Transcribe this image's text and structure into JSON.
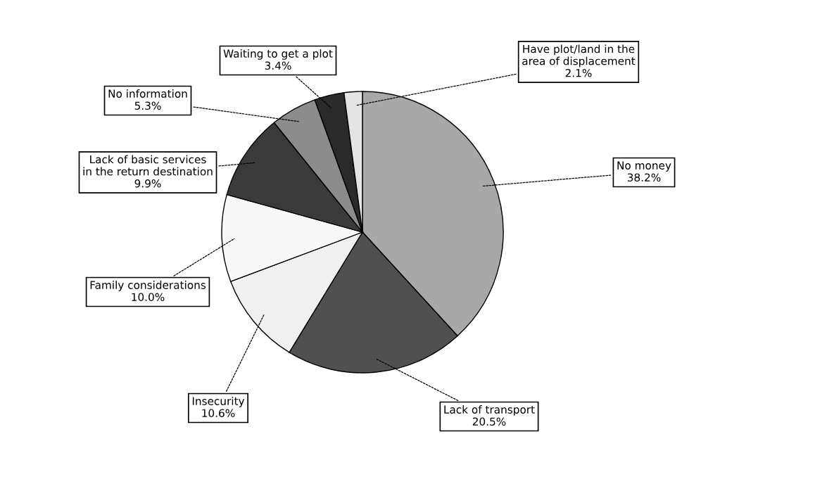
{
  "chart_data": {
    "type": "pie",
    "categories": [
      "No money",
      "Lack of transport",
      "Insecurity",
      "Family considerations",
      "Lack of basic services\nin the return destination",
      "No information",
      "Waiting to get a plot",
      "Have plot/land in the\narea of displacement"
    ],
    "values": [
      38.2,
      20.5,
      10.6,
      10.0,
      9.9,
      5.3,
      3.4,
      2.1
    ],
    "colors": [
      "#a8a8a8",
      "#505050",
      "#f0f0f0",
      "#f8f8f8",
      "#3a3a3a",
      "#8c8c8c",
      "#2a2a2a",
      "#e4e4e4"
    ],
    "value_labels": [
      "38.2%",
      "20.5%",
      "10.6%",
      "10.0%",
      "9.9%",
      "5.3%",
      "3.4%",
      "2.1%"
    ],
    "legend": false
  }
}
